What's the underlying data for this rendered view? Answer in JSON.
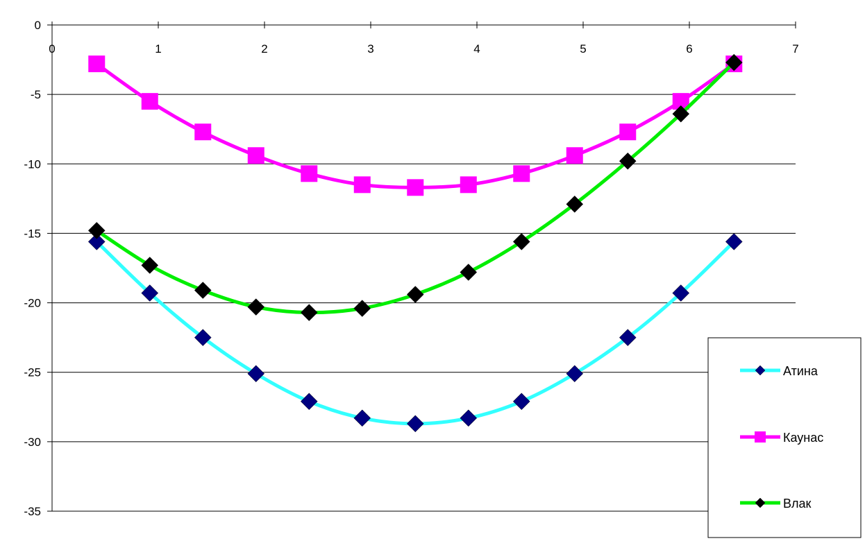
{
  "chart_data": {
    "type": "line",
    "xlim": [
      0,
      7
    ],
    "ylim": [
      -35,
      0
    ],
    "x_ticks": [
      "0",
      "1",
      "2",
      "3",
      "4",
      "5",
      "6",
      "7"
    ],
    "y_ticks": [
      "0",
      "-5",
      "-10",
      "-15",
      "-20",
      "-25",
      "-30",
      "-35"
    ],
    "grid": "horizontal",
    "legend_position": "bottom-right",
    "x": [
      0.42,
      0.92,
      1.42,
      1.92,
      2.42,
      2.92,
      3.42,
      3.92,
      4.42,
      4.92,
      5.42,
      5.92,
      6.42
    ],
    "series": [
      {
        "name": "Атина",
        "line_color": "#33ffff",
        "marker": "diamond",
        "marker_color": "#000080",
        "values": [
          -15.6,
          -19.3,
          -22.5,
          -25.1,
          -27.1,
          -28.3,
          -28.7,
          -28.3,
          -27.1,
          -25.1,
          -22.5,
          -19.3,
          -15.6
        ]
      },
      {
        "name": "Каунас",
        "line_color": "#ff00ff",
        "marker": "square",
        "marker_color": "#ff00ff",
        "values": [
          -2.8,
          -5.5,
          -7.7,
          -9.4,
          -10.7,
          -11.5,
          -11.7,
          -11.5,
          -10.7,
          -9.4,
          -7.7,
          -5.5,
          -2.8
        ]
      },
      {
        "name": "Влак",
        "line_color": "#00ee00",
        "marker": "diamond",
        "marker_color": "#000000",
        "values": [
          -14.8,
          -17.3,
          -19.1,
          -20.3,
          -20.7,
          -20.4,
          -19.4,
          -17.8,
          -15.6,
          -12.9,
          -9.8,
          -6.4,
          -2.7
        ]
      }
    ]
  }
}
